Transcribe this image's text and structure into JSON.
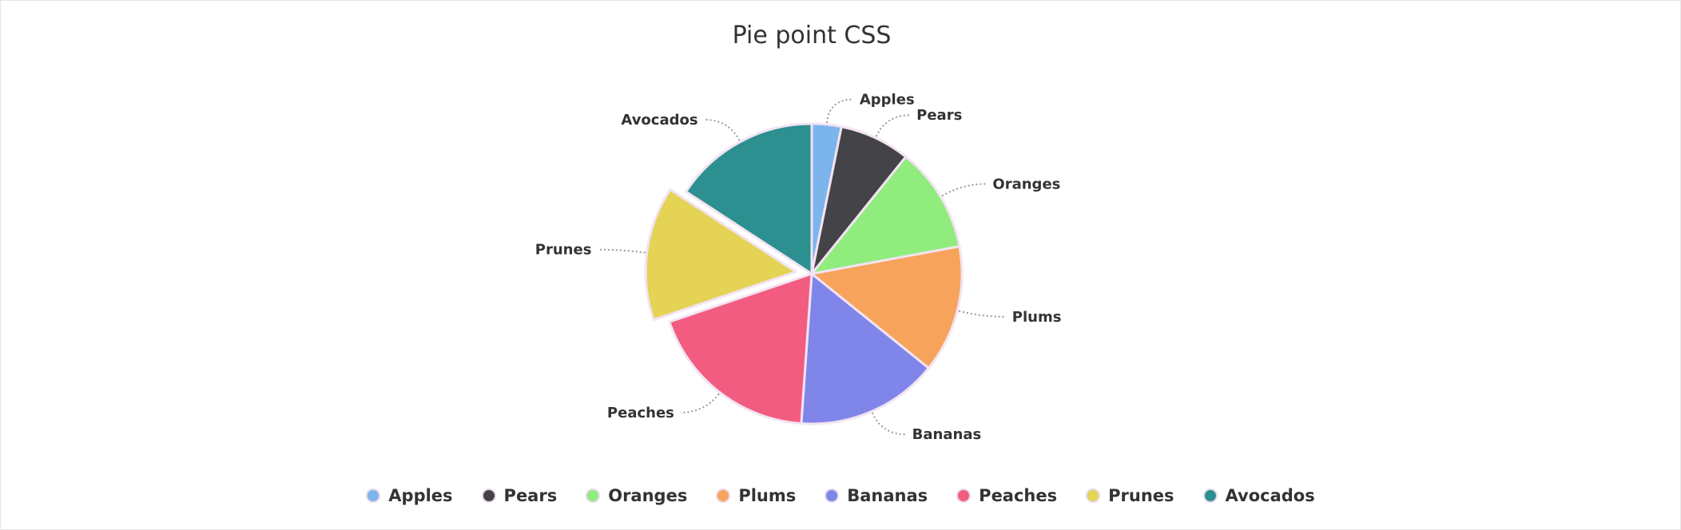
{
  "chart_data": {
    "type": "pie",
    "title": "Pie point CSS",
    "categories": [
      "Apples",
      "Pears",
      "Oranges",
      "Plums",
      "Bananas",
      "Peaches",
      "Prunes",
      "Avocados"
    ],
    "values": [
      29.9,
      71.5,
      106.4,
      129.2,
      144.0,
      176.0,
      135.6,
      148.5
    ],
    "colors": [
      "#7cb5ec",
      "#434348",
      "#90ed7d",
      "#f7a35c",
      "#8085e9",
      "#f15c80",
      "#e4d354",
      "#2b908f"
    ],
    "sliced": "Prunes",
    "data_labels": true,
    "legend": "bottom-center"
  }
}
